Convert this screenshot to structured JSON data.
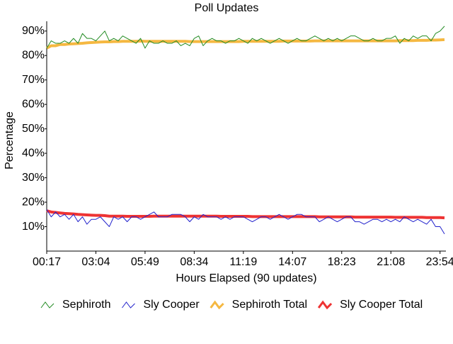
{
  "chart_data": {
    "type": "line",
    "title": "Poll Updates",
    "x_label": "Hours Elapsed (90 updates)",
    "y_label": "Percentage",
    "categories": [
      "00:17",
      null,
      null,
      null,
      null,
      null,
      null,
      null,
      null,
      null,
      null,
      "03:04",
      null,
      null,
      null,
      null,
      null,
      null,
      null,
      null,
      null,
      null,
      "05:49",
      null,
      null,
      null,
      null,
      null,
      null,
      null,
      null,
      null,
      null,
      "08:34",
      null,
      null,
      null,
      null,
      null,
      null,
      null,
      null,
      null,
      null,
      "11:19",
      null,
      null,
      null,
      null,
      null,
      null,
      null,
      null,
      null,
      null,
      "14:07",
      null,
      null,
      null,
      null,
      null,
      null,
      null,
      null,
      null,
      null,
      "18:23",
      null,
      null,
      null,
      null,
      null,
      null,
      null,
      null,
      null,
      null,
      "21:08",
      null,
      null,
      null,
      null,
      null,
      null,
      null,
      null,
      null,
      null,
      "23:54",
      null
    ],
    "ylim": [
      0,
      94
    ],
    "yticks": [
      {
        "value": 10,
        "label": "10%"
      },
      {
        "value": 20,
        "label": "20%"
      },
      {
        "value": 30,
        "label": "30%"
      },
      {
        "value": 40,
        "label": "40%"
      },
      {
        "value": 50,
        "label": "50%"
      },
      {
        "value": 60,
        "label": "60%"
      },
      {
        "value": 70,
        "label": "70%"
      },
      {
        "value": 80,
        "label": "80%"
      },
      {
        "value": 90,
        "label": "90%"
      }
    ],
    "grid": false,
    "legend": "bottom",
    "series": [
      {
        "name": "Sephiroth",
        "color": "#228b22",
        "width": 1,
        "values": [
          83,
          86,
          85,
          85,
          86,
          85,
          87,
          85,
          89,
          87,
          87,
          86,
          88,
          90,
          86,
          87,
          86,
          88,
          87,
          86,
          85,
          87,
          83,
          86,
          85,
          85,
          86,
          85,
          85,
          86,
          84,
          85,
          84,
          87,
          88,
          84,
          86,
          87,
          86,
          86,
          85,
          86,
          86,
          87,
          86,
          85,
          87,
          86,
          87,
          86,
          85,
          86,
          87,
          86,
          85,
          86,
          87,
          86,
          86,
          87,
          88,
          87,
          86,
          87,
          86,
          87,
          86,
          87,
          88,
          88,
          87,
          86,
          86,
          87,
          86,
          86,
          87,
          87,
          88,
          85,
          87,
          86,
          88,
          87,
          88,
          88,
          86,
          89,
          90,
          92
        ]
      },
      {
        "name": "Sly Cooper",
        "color": "#2222cc",
        "width": 1,
        "values": [
          17,
          14,
          16,
          14,
          15,
          13,
          15,
          12,
          14,
          11,
          13,
          13,
          14,
          12,
          10,
          14,
          13,
          14,
          12,
          14,
          14,
          13,
          14,
          15,
          16,
          14,
          14,
          14,
          15,
          15,
          15,
          14,
          12,
          14,
          13,
          15,
          14,
          14,
          14,
          13,
          14,
          13,
          14,
          14,
          14,
          13,
          12,
          13,
          14,
          14,
          13,
          14,
          15,
          14,
          13,
          14,
          15,
          15,
          14,
          14,
          14,
          12,
          13,
          14,
          13,
          12,
          13,
          14,
          14,
          12,
          12,
          11,
          12,
          13,
          13,
          12,
          13,
          12,
          13,
          12,
          14,
          13,
          12,
          13,
          12,
          11,
          13,
          10,
          10,
          7
        ]
      },
      {
        "name": "Sephiroth Total",
        "color": "#f5b841",
        "width": 4,
        "values": [
          83,
          84,
          84,
          84.5,
          84.5,
          84.7,
          84.8,
          84.9,
          85,
          85.2,
          85.3,
          85.4,
          85.5,
          85.6,
          85.6,
          85.7,
          85.7,
          85.8,
          85.8,
          85.8,
          85.8,
          85.9,
          85.8,
          85.8,
          85.8,
          85.8,
          85.8,
          85.8,
          85.8,
          85.8,
          85.8,
          85.8,
          85.7,
          85.7,
          85.7,
          85.7,
          85.7,
          85.7,
          85.7,
          85.7,
          85.7,
          85.7,
          85.7,
          85.7,
          85.8,
          85.8,
          85.8,
          85.8,
          85.8,
          85.8,
          85.8,
          85.8,
          85.8,
          85.9,
          85.9,
          85.9,
          85.9,
          85.9,
          85.9,
          85.9,
          86,
          86,
          86,
          86,
          86,
          86,
          86,
          86,
          86,
          86,
          86,
          86,
          86,
          86,
          86,
          86,
          86,
          86,
          86,
          86.1,
          86.1,
          86.1,
          86.1,
          86.2,
          86.2,
          86.2,
          86.3,
          86.3,
          86.4,
          86.5
        ]
      },
      {
        "name": "Sly Cooper Total",
        "color": "#ee3333",
        "width": 4,
        "values": [
          16.5,
          16,
          15.8,
          15.6,
          15.4,
          15.3,
          15.2,
          15,
          14.9,
          14.8,
          14.7,
          14.6,
          14.6,
          14.5,
          14.3,
          14.3,
          14.3,
          14.3,
          14.2,
          14.2,
          14.2,
          14.2,
          14.2,
          14.2,
          14.3,
          14.3,
          14.3,
          14.3,
          14.3,
          14.3,
          14.3,
          14.3,
          14.3,
          14.3,
          14.3,
          14.3,
          14.3,
          14.3,
          14.3,
          14.2,
          14.2,
          14.2,
          14.2,
          14.2,
          14.2,
          14.2,
          14.1,
          14.1,
          14.1,
          14.1,
          14.1,
          14.1,
          14.1,
          14.1,
          14.1,
          14.1,
          14.1,
          14.1,
          14.1,
          14.1,
          14.1,
          14.0,
          14.0,
          14.0,
          14.0,
          14.0,
          14.0,
          14.0,
          14.0,
          13.9,
          13.9,
          13.9,
          13.9,
          13.9,
          13.9,
          13.9,
          13.9,
          13.9,
          13.8,
          13.8,
          13.8,
          13.8,
          13.8,
          13.8,
          13.8,
          13.7,
          13.7,
          13.7,
          13.7,
          13.6
        ]
      }
    ]
  }
}
